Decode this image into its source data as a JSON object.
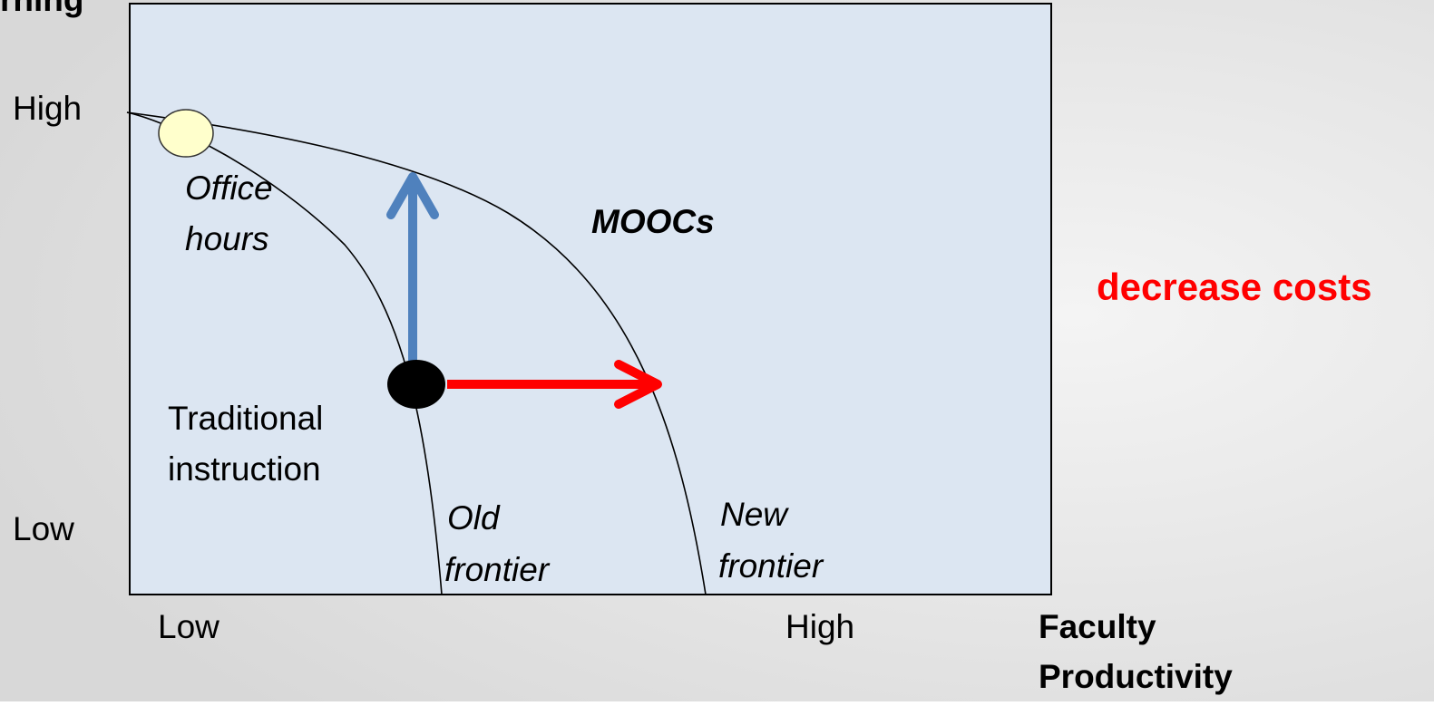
{
  "y_axis": {
    "title": "rning",
    "high": "High",
    "low": "Low"
  },
  "x_axis": {
    "low": "Low",
    "high": "High",
    "title": [
      "Faculty",
      "Productivity"
    ]
  },
  "labels": {
    "office_hours": [
      "Office",
      "hours"
    ],
    "moocs": "MOOCs",
    "traditional": [
      "Traditional",
      "instruction"
    ],
    "old_frontier": [
      "Old",
      "frontier"
    ],
    "new_frontier": [
      "New",
      "frontier"
    ]
  },
  "callout": "decrease costs"
}
